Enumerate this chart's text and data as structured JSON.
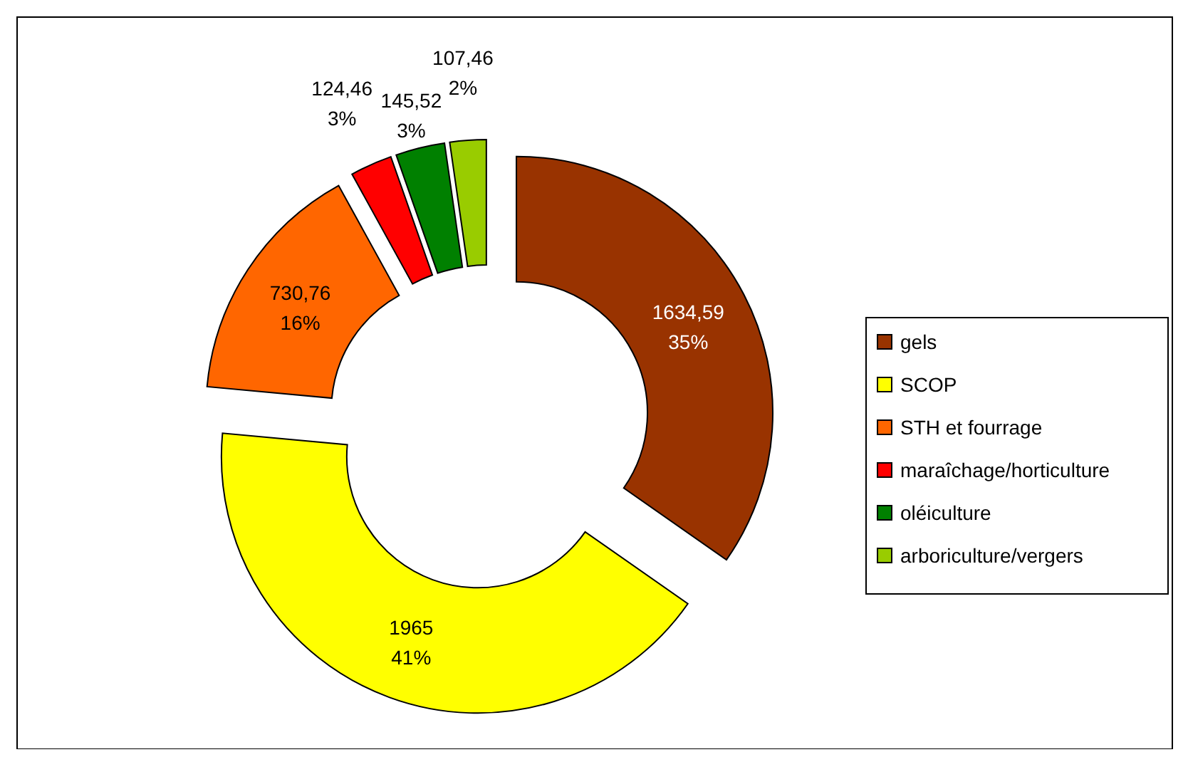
{
  "chart_data": {
    "type": "donut",
    "categories": [
      "gels",
      "SCOP",
      "STH et fourrage",
      "maraîchage/horticulture",
      "oléiculture",
      "arboriculture/vergers"
    ],
    "values": [
      1634.59,
      1965,
      730.76,
      124.46,
      145.52,
      107.46
    ],
    "colors": [
      "#993300",
      "#ffff00",
      "#ff6600",
      "#ff0000",
      "#008000",
      "#99cc00"
    ],
    "value_labels": [
      "1634,59\n35%",
      "1965\n41%",
      "730,76\n16%",
      "124,46\n3%",
      "145,52\n3%",
      "107,46\n2%"
    ],
    "legend": "right"
  }
}
